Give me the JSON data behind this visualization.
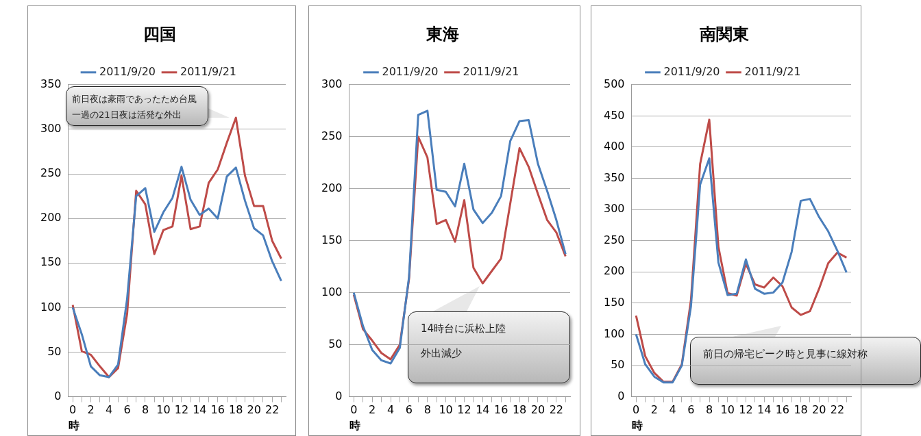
{
  "chart_data": [
    {
      "type": "line",
      "title": "四国",
      "xlabel": "時",
      "categories": [
        "0",
        null,
        "2",
        null,
        "4",
        null,
        "6",
        null,
        "8",
        null,
        "10",
        null,
        "12",
        null,
        "14",
        null,
        "16",
        null,
        "18",
        null,
        "20",
        null,
        "22",
        null
      ],
      "grid": "y",
      "legend": "top",
      "marker": "none",
      "ylim": [
        0,
        350
      ],
      "yticks": [
        0,
        50,
        100,
        150,
        200,
        250,
        300,
        350
      ],
      "series": [
        {
          "name": "2011/9/20",
          "color": "#4a7ebb",
          "values": [
            100,
            70,
            34,
            24,
            22,
            36,
            110,
            225,
            234,
            185,
            207,
            223,
            258,
            221,
            204,
            211,
            200,
            247,
            257,
            220,
            189,
            181,
            152,
            130
          ]
        },
        {
          "name": "2011/9/21",
          "color": "#be4b48",
          "values": [
            103,
            51,
            47,
            34,
            22,
            32,
            93,
            231,
            216,
            160,
            187,
            191,
            248,
            188,
            191,
            240,
            255,
            285,
            313,
            248,
            214,
            214,
            175,
            155
          ]
        }
      ],
      "annotations": [
        "前日夜は豪雨であったため台風一過の21日夜は活発な外出"
      ]
    },
    {
      "type": "line",
      "title": "東海",
      "xlabel": "時",
      "categories": [
        "0",
        null,
        "2",
        null,
        "4",
        null,
        "6",
        null,
        "8",
        null,
        "10",
        null,
        "12",
        null,
        "14",
        null,
        "16",
        null,
        "18",
        null,
        "20",
        null,
        "22",
        null
      ],
      "grid": "y",
      "legend": "top",
      "marker": "none",
      "ylim": [
        0,
        300
      ],
      "yticks": [
        0,
        50,
        100,
        150,
        200,
        250,
        300
      ],
      "series": [
        {
          "name": "2011/9/20",
          "color": "#4a7ebb",
          "values": [
            100,
            68,
            45,
            35,
            32,
            47,
            115,
            271,
            275,
            199,
            197,
            183,
            224,
            180,
            167,
            177,
            193,
            246,
            265,
            266,
            224,
            198,
            170,
            137
          ]
        },
        {
          "name": "2011/9/21",
          "color": "#be4b48",
          "values": [
            98,
            65,
            54,
            42,
            36,
            50,
            113,
            250,
            230,
            166,
            170,
            149,
            189,
            124,
            109,
            121,
            133,
            186,
            239,
            221,
            195,
            170,
            158,
            135
          ]
        }
      ],
      "annotations": [
        "14時台に浜松上陸外出減少"
      ]
    },
    {
      "type": "line",
      "title": "南関東",
      "xlabel": "時",
      "categories": [
        "0",
        null,
        "2",
        null,
        "4",
        null,
        "6",
        null,
        "8",
        null,
        "10",
        null,
        "12",
        null,
        "14",
        null,
        "16",
        null,
        "18",
        null,
        "20",
        null,
        "22",
        null
      ],
      "grid": "y",
      "legend": "top",
      "marker": "none",
      "ylim": [
        0,
        500
      ],
      "yticks": [
        0,
        50,
        100,
        150,
        200,
        250,
        300,
        350,
        400,
        450,
        500
      ],
      "series": [
        {
          "name": "2011/9/20",
          "color": "#4a7ebb",
          "values": [
            100,
            52,
            32,
            23,
            23,
            50,
            145,
            340,
            382,
            215,
            163,
            165,
            220,
            173,
            165,
            167,
            183,
            232,
            314,
            317,
            288,
            265,
            234,
            199
          ]
        },
        {
          "name": "2011/9/21",
          "color": "#be4b48",
          "values": [
            130,
            65,
            38,
            24,
            24,
            52,
            155,
            373,
            444,
            240,
            166,
            162,
            213,
            180,
            175,
            191,
            177,
            143,
            131,
            137,
            173,
            214,
            231,
            223
          ]
        }
      ],
      "annotations": [
        "前日の帰宅ピーク時と見事に線対称"
      ]
    }
  ]
}
